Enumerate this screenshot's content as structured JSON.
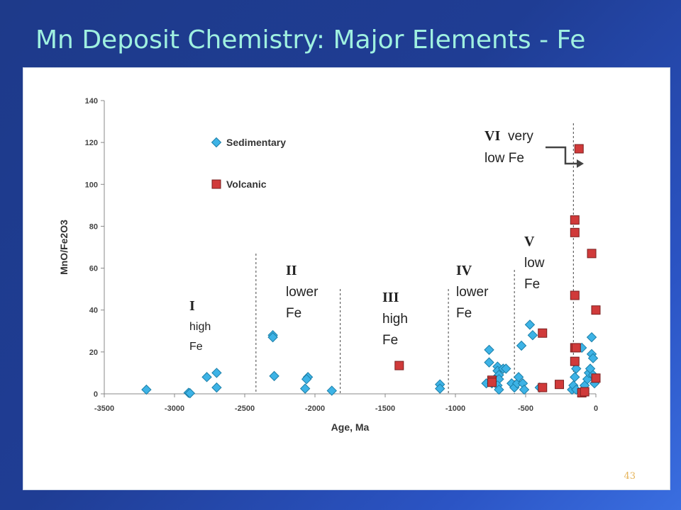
{
  "slide": {
    "title": "Mn Deposit Chemistry: Major Elements - Fe",
    "page_number": "43"
  },
  "colors": {
    "background": "#1e3a8a",
    "title": "#9ff0e0",
    "sedimentary": "#3db3e6",
    "volcanic": "#d03a3a",
    "page_number": "#e6b45a"
  },
  "chart_data": {
    "type": "scatter",
    "title": "",
    "xlabel": "Age, Ma",
    "ylabel": "MnO/Fe2O3",
    "xlim": [
      -3500,
      0
    ],
    "ylim": [
      0,
      140
    ],
    "xticks": [
      -3500,
      -3000,
      -2500,
      -2000,
      -1500,
      -1000,
      -500,
      0
    ],
    "yticks": [
      0,
      20,
      40,
      60,
      80,
      100,
      120,
      140
    ],
    "grid": false,
    "legend": "upper-left",
    "series": [
      {
        "name": "Sedimentary",
        "marker": "diamond",
        "color": "#3db3e6",
        "points": [
          [
            -3200,
            2
          ],
          [
            -2900,
            0.5
          ],
          [
            -2890,
            0.3
          ],
          [
            -2770,
            8
          ],
          [
            -2700,
            10
          ],
          [
            -2700,
            3
          ],
          [
            -2300,
            28
          ],
          [
            -2300,
            27
          ],
          [
            -2290,
            8.5
          ],
          [
            -2050,
            8
          ],
          [
            -2060,
            7
          ],
          [
            -2070,
            2.5
          ],
          [
            -1880,
            1.5
          ],
          [
            -1110,
            4.5
          ],
          [
            -1110,
            2.5
          ],
          [
            -760,
            21
          ],
          [
            -760,
            15
          ],
          [
            -780,
            5
          ],
          [
            -740,
            5
          ],
          [
            -720,
            7
          ],
          [
            -700,
            13
          ],
          [
            -700,
            11
          ],
          [
            -690,
            9
          ],
          [
            -690,
            7
          ],
          [
            -700,
            4
          ],
          [
            -690,
            2
          ],
          [
            -660,
            12
          ],
          [
            -640,
            12
          ],
          [
            -600,
            5
          ],
          [
            -580,
            3
          ],
          [
            -560,
            5
          ],
          [
            -550,
            8
          ],
          [
            -530,
            23
          ],
          [
            -520,
            5
          ],
          [
            -510,
            2
          ],
          [
            -470,
            33
          ],
          [
            -450,
            28
          ],
          [
            -400,
            3
          ],
          [
            -170,
            2
          ],
          [
            -160,
            4
          ],
          [
            -150,
            8
          ],
          [
            -140,
            12
          ],
          [
            -140,
            2
          ],
          [
            -100,
            22
          ],
          [
            -80,
            4
          ],
          [
            -60,
            7
          ],
          [
            -50,
            10
          ],
          [
            -40,
            12
          ],
          [
            -30,
            27
          ],
          [
            -30,
            19
          ],
          [
            -20,
            17
          ],
          [
            -20,
            9
          ],
          [
            -10,
            5
          ]
        ]
      },
      {
        "name": "Volcanic",
        "marker": "square",
        "color": "#d03a3a",
        "points": [
          [
            -1400,
            13.5
          ],
          [
            -740,
            6.5
          ],
          [
            -740,
            5.5
          ],
          [
            -380,
            29
          ],
          [
            -380,
            3
          ],
          [
            -260,
            4.5
          ],
          [
            -150,
            83
          ],
          [
            -150,
            77
          ],
          [
            -150,
            47
          ],
          [
            -150,
            22
          ],
          [
            -150,
            15.5
          ],
          [
            -140,
            22
          ],
          [
            -120,
            117
          ],
          [
            -100,
            0.5
          ],
          [
            -80,
            1
          ],
          [
            -30,
            67
          ],
          [
            0,
            40
          ],
          [
            0,
            7.5
          ]
        ]
      }
    ],
    "dividers": [
      -2420,
      -1820,
      -1050,
      -580,
      -160
    ],
    "annotations": [
      {
        "roman": "I",
        "lines": [
          "high",
          "Fe"
        ]
      },
      {
        "roman": "II",
        "lines": [
          "lower",
          "Fe"
        ]
      },
      {
        "roman": "III",
        "lines": [
          "high",
          "Fe"
        ]
      },
      {
        "roman": "IV",
        "lines": [
          "lower",
          "Fe"
        ]
      },
      {
        "roman": "V",
        "lines": [
          "low",
          "Fe"
        ]
      },
      {
        "roman": "VI",
        "lines": [
          "very",
          "low Fe"
        ]
      }
    ]
  }
}
